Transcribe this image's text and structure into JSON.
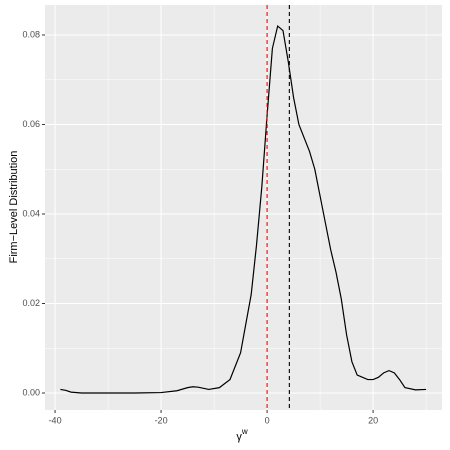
{
  "chart_data": {
    "type": "line",
    "xlabel": "γ",
    "xlabel_superscript": "w",
    "ylabel": "Firm−Level Distribution",
    "x": [
      -39,
      -38,
      -37,
      -35,
      -30,
      -25,
      -20,
      -17,
      -15,
      -14,
      -13,
      -11,
      -9,
      -7,
      -5,
      -3,
      -2,
      -1,
      0,
      1,
      2,
      3,
      4,
      5,
      6,
      7,
      8,
      9,
      10,
      11,
      12,
      13,
      14,
      15,
      16,
      17,
      19,
      20,
      21,
      22,
      23,
      24,
      25,
      26,
      28,
      30
    ],
    "series": [
      {
        "color": "#000000",
        "values": [
          0.0008,
          0.0006,
          0.0002,
          0.0,
          0.0,
          0.0,
          0.0001,
          0.0005,
          0.0012,
          0.0014,
          0.0013,
          0.0008,
          0.0012,
          0.003,
          0.009,
          0.022,
          0.033,
          0.046,
          0.062,
          0.077,
          0.082,
          0.081,
          0.074,
          0.066,
          0.06,
          0.057,
          0.054,
          0.05,
          0.044,
          0.038,
          0.032,
          0.027,
          0.021,
          0.013,
          0.007,
          0.004,
          0.003,
          0.003,
          0.0035,
          0.0045,
          0.005,
          0.0045,
          0.003,
          0.0012,
          0.0007,
          0.0008
        ]
      }
    ],
    "vlines": [
      {
        "value": 0,
        "color": "#ff0000"
      },
      {
        "value": 4.2,
        "color": "#000000"
      }
    ],
    "xlim": [
      -41.9,
      33
    ],
    "ylim": [
      -0.0038,
      0.0867
    ],
    "xticks": [
      -40,
      -20,
      0,
      20
    ],
    "x_minor_ticks": [
      -30,
      -10,
      10,
      30
    ],
    "yticks": [
      {
        "value": 0,
        "label": "0.00"
      },
      {
        "value": 0.02,
        "label": "0.02"
      },
      {
        "value": 0.04,
        "label": "0.04"
      },
      {
        "value": 0.06,
        "label": "0.06"
      },
      {
        "value": 0.08,
        "label": "0.08"
      }
    ],
    "y_minor_ticks": [
      0.01,
      0.03,
      0.05,
      0.07
    ],
    "grid": true
  }
}
